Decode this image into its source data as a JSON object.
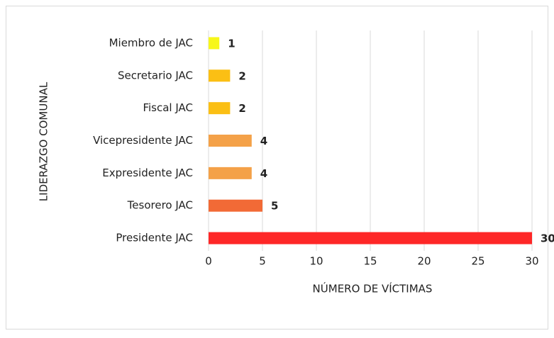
{
  "chart_data": {
    "type": "bar",
    "orientation": "horizontal",
    "xlabel": "NÚMERO DE VÍCTIMAS",
    "ylabel": "LIDERAZGO COMUNAL",
    "categories": [
      "Miembro de JAC",
      "Secretario JAC",
      "Fiscal JAC",
      "Vicepresidente JAC",
      "Expresidente JAC",
      "Tesorero JAC",
      "Presidente JAC"
    ],
    "values": [
      1,
      2,
      2,
      4,
      4,
      5,
      30
    ],
    "colors": [
      "#f7f71a",
      "#fbbf14",
      "#fbbf14",
      "#f4a148",
      "#f4a148",
      "#f26a36",
      "#fe2727"
    ],
    "xlim": [
      0,
      30
    ],
    "xticks": [
      0,
      5,
      10,
      15,
      20,
      25,
      30
    ],
    "grid": true
  }
}
